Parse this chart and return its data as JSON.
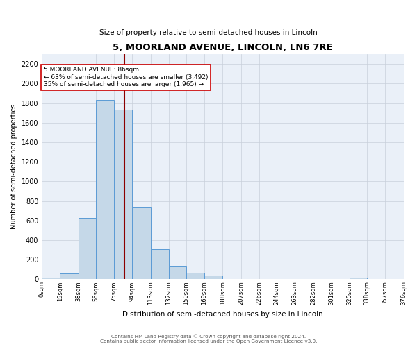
{
  "title": "5, MOORLAND AVENUE, LINCOLN, LN6 7RE",
  "subtitle": "Size of property relative to semi-detached houses in Lincoln",
  "xlabel": "Distribution of semi-detached houses by size in Lincoln",
  "ylabel": "Number of semi-detached properties",
  "bin_edges": [
    0,
    19,
    38,
    56,
    75,
    94,
    113,
    132,
    150,
    169,
    188,
    207,
    226,
    244,
    263,
    282,
    301,
    320,
    338,
    357,
    376
  ],
  "bin_labels": [
    "0sqm",
    "19sqm",
    "38sqm",
    "56sqm",
    "75sqm",
    "94sqm",
    "113sqm",
    "132sqm",
    "150sqm",
    "169sqm",
    "188sqm",
    "207sqm",
    "226sqm",
    "244sqm",
    "263sqm",
    "282sqm",
    "301sqm",
    "320sqm",
    "338sqm",
    "357sqm",
    "376sqm"
  ],
  "counts": [
    15,
    60,
    625,
    1830,
    1730,
    740,
    305,
    130,
    65,
    35,
    5,
    5,
    0,
    0,
    0,
    0,
    0,
    15,
    0,
    0
  ],
  "bar_color": "#c5d8e8",
  "bar_edge_color": "#5b9bd5",
  "property_value": 86,
  "vline_color": "#8b0000",
  "annotation_text_line1": "5 MOORLAND AVENUE: 86sqm",
  "annotation_text_line2": "← 63% of semi-detached houses are smaller (3,492)",
  "annotation_text_line3": "35% of semi-detached houses are larger (1,965) →",
  "annotation_box_color": "#ffffff",
  "annotation_box_edge": "#cc0000",
  "ylim": [
    0,
    2300
  ],
  "yticks": [
    0,
    200,
    400,
    600,
    800,
    1000,
    1200,
    1400,
    1600,
    1800,
    2000,
    2200
  ],
  "footer_line1": "Contains HM Land Registry data © Crown copyright and database right 2024.",
  "footer_line2": "Contains public sector information licensed under the Open Government Licence v3.0.",
  "background_color": "#ffffff",
  "plot_bg_color": "#eaf0f8",
  "grid_color": "#c8d0da"
}
